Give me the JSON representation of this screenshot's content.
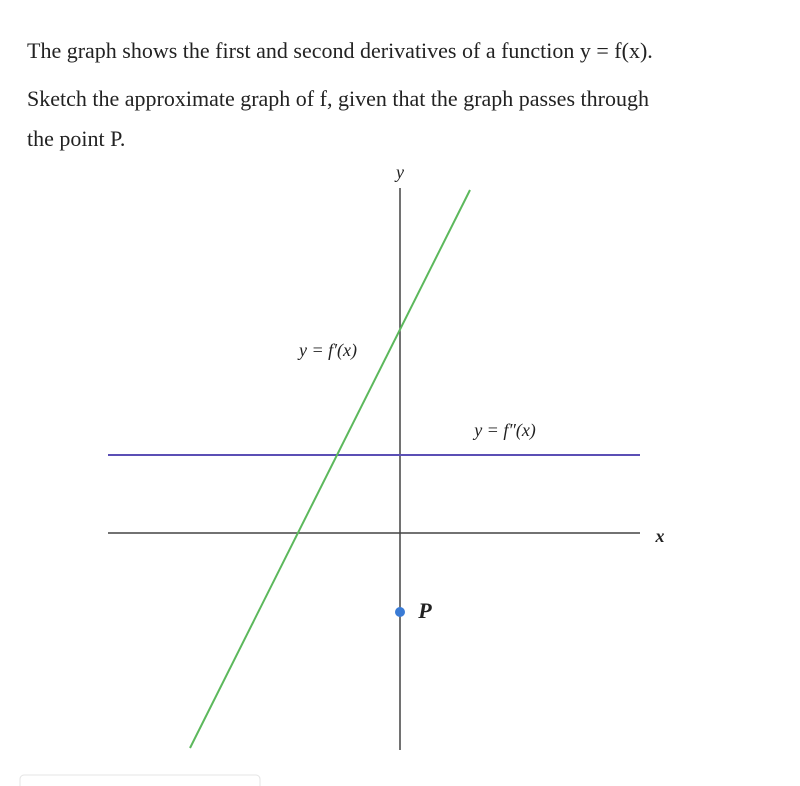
{
  "question": {
    "lines": [
      "The graph shows the first and second derivatives of a function y = f(x).",
      "Sketch the approximate graph of f,  given that the graph passes through",
      "the point P."
    ]
  },
  "diagram": {
    "y_axis_label": "y",
    "x_axis_label": "x",
    "first_derivative_label": "y = f′(x)",
    "second_derivative_label": "y = f″(x)",
    "point_label": "P"
  }
}
